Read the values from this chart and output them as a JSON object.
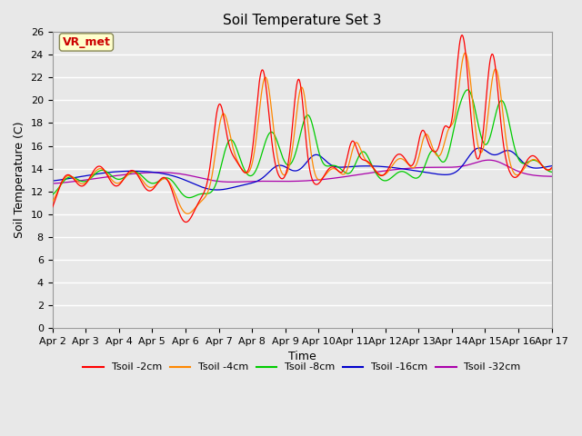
{
  "title": "Soil Temperature Set 3",
  "xlabel": "Time",
  "ylabel": "Soil Temperature (C)",
  "ylim": [
    0,
    26
  ],
  "yticks": [
    0,
    2,
    4,
    6,
    8,
    10,
    12,
    14,
    16,
    18,
    20,
    22,
    24,
    26
  ],
  "xtick_labels": [
    "Apr 2",
    "Apr 3",
    "Apr 4",
    "Apr 5",
    "Apr 6",
    "Apr 7",
    "Apr 8",
    "Apr 9",
    "Apr 10",
    "Apr 11",
    "Apr 12",
    "Apr 13",
    "Apr 14",
    "Apr 15",
    "Apr 16",
    "Apr 17"
  ],
  "colors": {
    "Tsoil -2cm": "#ff0000",
    "Tsoil -4cm": "#ff8800",
    "Tsoil -8cm": "#00cc00",
    "Tsoil -16cm": "#0000cc",
    "Tsoil -32cm": "#aa00aa"
  },
  "legend_labels": [
    "Tsoil -2cm",
    "Tsoil -4cm",
    "Tsoil -8cm",
    "Tsoil -16cm",
    "Tsoil -32cm"
  ],
  "annotation_text": "VR_met",
  "annotation_color": "#cc0000",
  "annotation_bg": "#ffffcc",
  "bg_color": "#e8e8e8",
  "plot_bg_color": "#e8e8e8",
  "grid_color": "#ffffff",
  "title_fontsize": 11,
  "axis_fontsize": 9,
  "tick_fontsize": 8
}
